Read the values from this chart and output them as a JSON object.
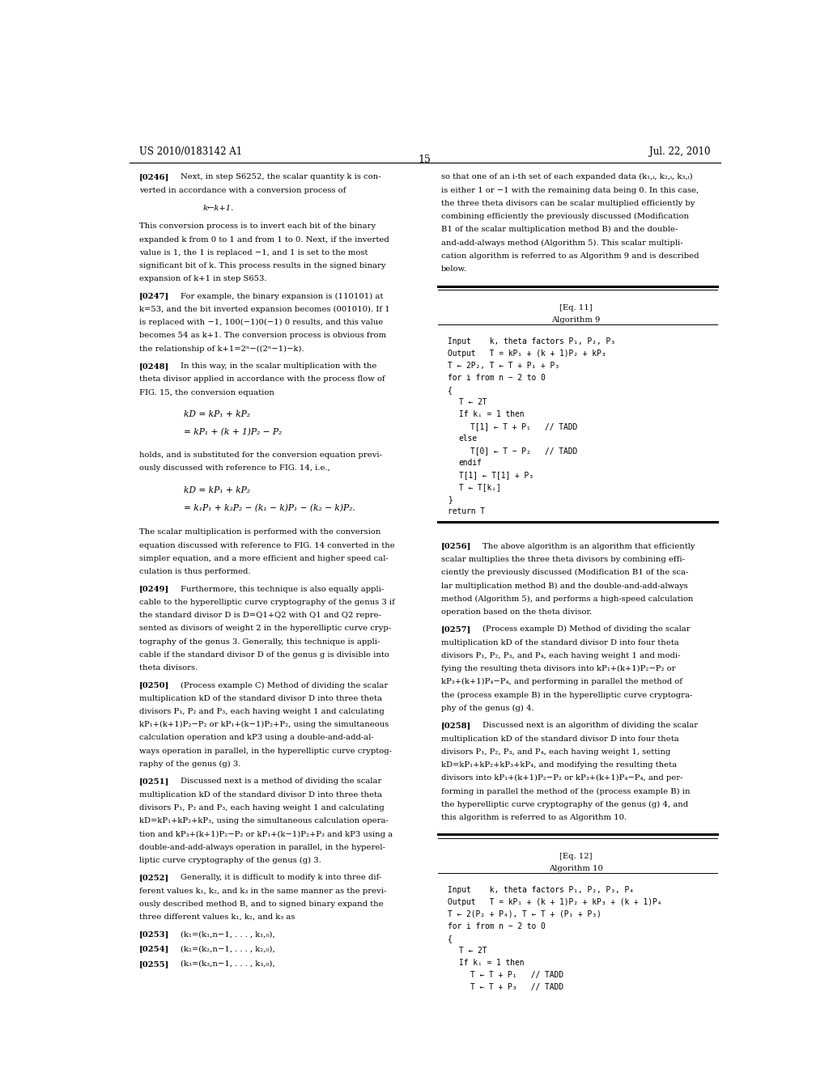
{
  "page_number": "15",
  "header_left": "US 2010/0183142 A1",
  "header_right": "Jul. 22, 2010",
  "background_color": "#ffffff",
  "text_color": "#000000",
  "algo9": {
    "eq_label": "[Eq. 11]",
    "title": "Algorithm 9",
    "lines": [
      "Input    k, theta factors P₁, P₂, P₃",
      "Output   T = kP₁ + (k + 1)P₂ + kP₃",
      "T ← 2P₂, T ← T + P₁ + P₃",
      "for i from n − 2 to 0",
      "{",
      "   T ← 2T",
      "   If kᵢ = 1 then",
      "      T[1] ← T + P₁   // TADD",
      "   else",
      "      T[0] ← T − P₂   // TADD",
      "   endif",
      "   T[1] ← T[1] + P₃",
      "   T ← T[kᵢ]",
      "}",
      "return T"
    ]
  },
  "algo10_start": {
    "eq_label": "[Eq. 12]",
    "title": "Algorithm 10",
    "lines": [
      "Input    k, theta factors P₁, P₂, P₃, P₄",
      "Output   T = kP₁ + (k + 1)P₂ + kP₃ + (k + 1)P₄",
      "T ← 2(P₂ + P₄), T ← T + (P₁ + P₃)",
      "for i from n − 2 to 0",
      "{",
      "   T ← 2T",
      "   If kᵢ = 1 then",
      "      T ← T + P₁   // TADD",
      "      T ← T + P₃   // TADD"
    ]
  }
}
